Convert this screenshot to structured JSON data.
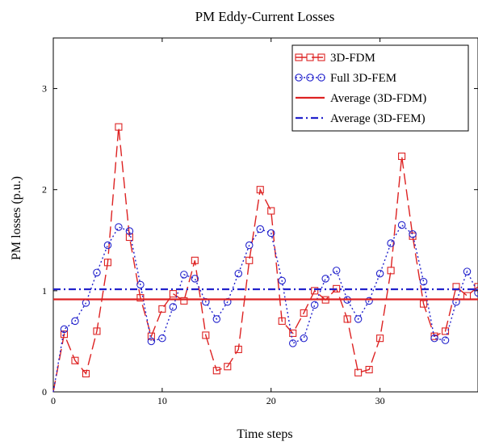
{
  "chart_data": {
    "type": "line",
    "title": "PM Eddy-Current Losses",
    "xlabel": "Time steps",
    "ylabel": "PM losses (p.u.)",
    "xlim": [
      0,
      39
    ],
    "ylim": [
      0,
      3.5
    ],
    "xticks": [
      "0",
      "10",
      "20",
      "30"
    ],
    "yticks": [
      "0",
      "1",
      "2",
      "3"
    ],
    "legend_position": "top-right",
    "series": [
      {
        "name": "3D-FDM",
        "color": "#dd2222",
        "style": "dashed",
        "marker": "square",
        "x": [
          0,
          1,
          2,
          3,
          4,
          5,
          6,
          7,
          8,
          9,
          10,
          11,
          12,
          13,
          14,
          15,
          16,
          17,
          18,
          19,
          20,
          21,
          22,
          23,
          24,
          25,
          26,
          27,
          28,
          29,
          30,
          31,
          32,
          33,
          34,
          35,
          36,
          37,
          38,
          39
        ],
        "y": [
          0,
          0.57,
          0.31,
          0.18,
          0.6,
          1.28,
          2.62,
          1.53,
          0.93,
          0.55,
          0.82,
          0.97,
          0.9,
          1.3,
          0.56,
          0.21,
          0.25,
          0.42,
          1.3,
          2.0,
          1.79,
          0.7,
          0.58,
          0.78,
          1.0,
          0.91,
          1.02,
          0.72,
          0.19,
          0.22,
          0.53,
          1.2,
          2.33,
          1.54,
          0.87,
          0.55,
          0.6,
          1.04,
          0.95,
          1.04
        ]
      },
      {
        "name": "Full 3D-FEM",
        "color": "#2222cc",
        "style": "dotted",
        "marker": "circle",
        "x": [
          0,
          1,
          2,
          3,
          4,
          5,
          6,
          7,
          8,
          9,
          10,
          11,
          12,
          13,
          14,
          15,
          16,
          17,
          18,
          19,
          20,
          21,
          22,
          23,
          24,
          25,
          26,
          27,
          28,
          29,
          30,
          31,
          32,
          33,
          34,
          35,
          36,
          37,
          38,
          39
        ],
        "y": [
          0,
          0.62,
          0.7,
          0.88,
          1.18,
          1.45,
          1.63,
          1.59,
          1.06,
          0.5,
          0.53,
          0.84,
          1.16,
          1.12,
          0.89,
          0.72,
          0.89,
          1.17,
          1.45,
          1.61,
          1.57,
          1.1,
          0.48,
          0.53,
          0.86,
          1.12,
          1.2,
          0.91,
          0.72,
          0.9,
          1.17,
          1.47,
          1.65,
          1.56,
          1.09,
          0.53,
          0.51,
          0.89,
          1.19,
          0.98
        ]
      },
      {
        "name": "Average (3D-FDM)",
        "color": "#dd2222",
        "style": "solid",
        "constant": 0.915
      },
      {
        "name": "Average (3D-FEM)",
        "color": "#2222cc",
        "style": "dashdot",
        "constant": 1.015
      }
    ]
  }
}
